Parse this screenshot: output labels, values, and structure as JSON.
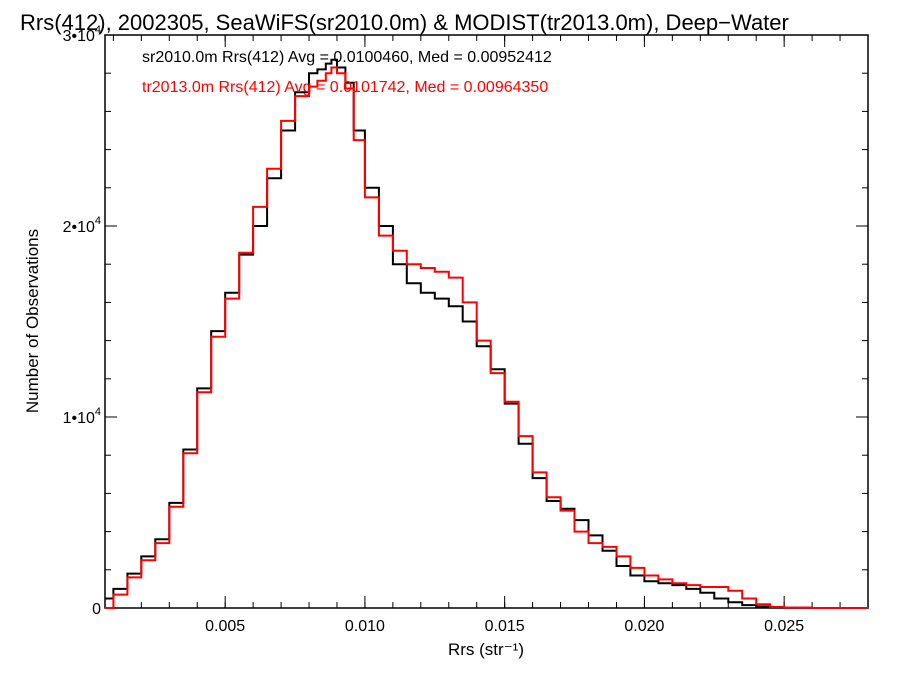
{
  "chart_data": {
    "type": "line",
    "title": "Rrs(412), 2002305, SeaWiFS(sr2010.0m) & MODIST(tr2013.0m), Deep−Water",
    "xlabel": "Rrs (str⁻¹)",
    "ylabel": "Number of Observations",
    "xlim": [
      0.0007,
      0.028
    ],
    "ylim": [
      0,
      30000
    ],
    "x_ticks": [
      {
        "value": 0.005,
        "label": "0.005"
      },
      {
        "value": 0.01,
        "label": "0.010"
      },
      {
        "value": 0.015,
        "label": "0.015"
      },
      {
        "value": 0.02,
        "label": "0.020"
      },
      {
        "value": 0.025,
        "label": "0.025"
      }
    ],
    "y_ticks": [
      {
        "value": 0,
        "label": "0"
      },
      {
        "value": 10000,
        "label": "1•104"
      },
      {
        "value": 20000,
        "label": "2•104"
      },
      {
        "value": 30000,
        "label": "3•104"
      }
    ],
    "grid": false,
    "legend_position": "top-left",
    "series": [
      {
        "name": "sr2010.0m Rrs(412) Avg = 0.0100460, Med = 0.00952412",
        "color": "#000000",
        "x": [
          0.0007,
          0.001,
          0.0015,
          0.002,
          0.0025,
          0.003,
          0.0035,
          0.004,
          0.0045,
          0.005,
          0.0055,
          0.006,
          0.0065,
          0.007,
          0.0075,
          0.008,
          0.0083,
          0.0086,
          0.0088,
          0.009,
          0.0093,
          0.0096,
          0.01,
          0.0105,
          0.011,
          0.0115,
          0.012,
          0.0125,
          0.013,
          0.0135,
          0.014,
          0.0145,
          0.015,
          0.0155,
          0.016,
          0.0165,
          0.017,
          0.0175,
          0.018,
          0.0185,
          0.019,
          0.0195,
          0.02,
          0.0205,
          0.021,
          0.0215,
          0.022,
          0.0225,
          0.023,
          0.0235,
          0.024,
          0.0245,
          0.025,
          0.026,
          0.027,
          0.028
        ],
        "y": [
          500,
          1000,
          1800,
          2700,
          3600,
          5500,
          8300,
          11500,
          14500,
          16500,
          18500,
          20000,
          22500,
          25000,
          27000,
          28000,
          28200,
          28500,
          28700,
          28300,
          27500,
          25000,
          22000,
          20000,
          18000,
          17000,
          16500,
          16200,
          15800,
          15000,
          13700,
          12500,
          10700,
          8600,
          6800,
          5600,
          5200,
          4600,
          3800,
          3000,
          2200,
          1700,
          1400,
          1300,
          1200,
          1000,
          800,
          500,
          300,
          150,
          80,
          30,
          10,
          0,
          0,
          0
        ]
      },
      {
        "name": "tr2013.0m Rrs(412) Avg = 0.0101742, Med = 0.00964350",
        "color": "#ff0000",
        "x": [
          0.0007,
          0.001,
          0.0015,
          0.002,
          0.0025,
          0.003,
          0.0035,
          0.004,
          0.0045,
          0.005,
          0.0055,
          0.006,
          0.0065,
          0.007,
          0.0075,
          0.008,
          0.0083,
          0.0086,
          0.0088,
          0.009,
          0.0093,
          0.0096,
          0.01,
          0.0105,
          0.011,
          0.0115,
          0.012,
          0.0125,
          0.013,
          0.0135,
          0.014,
          0.0145,
          0.015,
          0.0155,
          0.016,
          0.0165,
          0.017,
          0.0175,
          0.018,
          0.0185,
          0.019,
          0.0195,
          0.02,
          0.0205,
          0.021,
          0.0215,
          0.022,
          0.0225,
          0.023,
          0.0235,
          0.024,
          0.0245,
          0.025,
          0.026,
          0.027,
          0.028
        ],
        "y": [
          0,
          700,
          1600,
          2500,
          3400,
          5300,
          8100,
          11300,
          14200,
          16200,
          18600,
          21000,
          23000,
          25500,
          26800,
          27300,
          27600,
          28000,
          28300,
          28000,
          27200,
          24500,
          21500,
          19500,
          18700,
          18000,
          17800,
          17600,
          17300,
          16000,
          14000,
          12300,
          10800,
          9000,
          7100,
          5800,
          5100,
          4000,
          3400,
          3200,
          2700,
          2100,
          1700,
          1500,
          1300,
          1200,
          1100,
          1100,
          900,
          500,
          200,
          60,
          20,
          0,
          0,
          0
        ]
      }
    ]
  }
}
